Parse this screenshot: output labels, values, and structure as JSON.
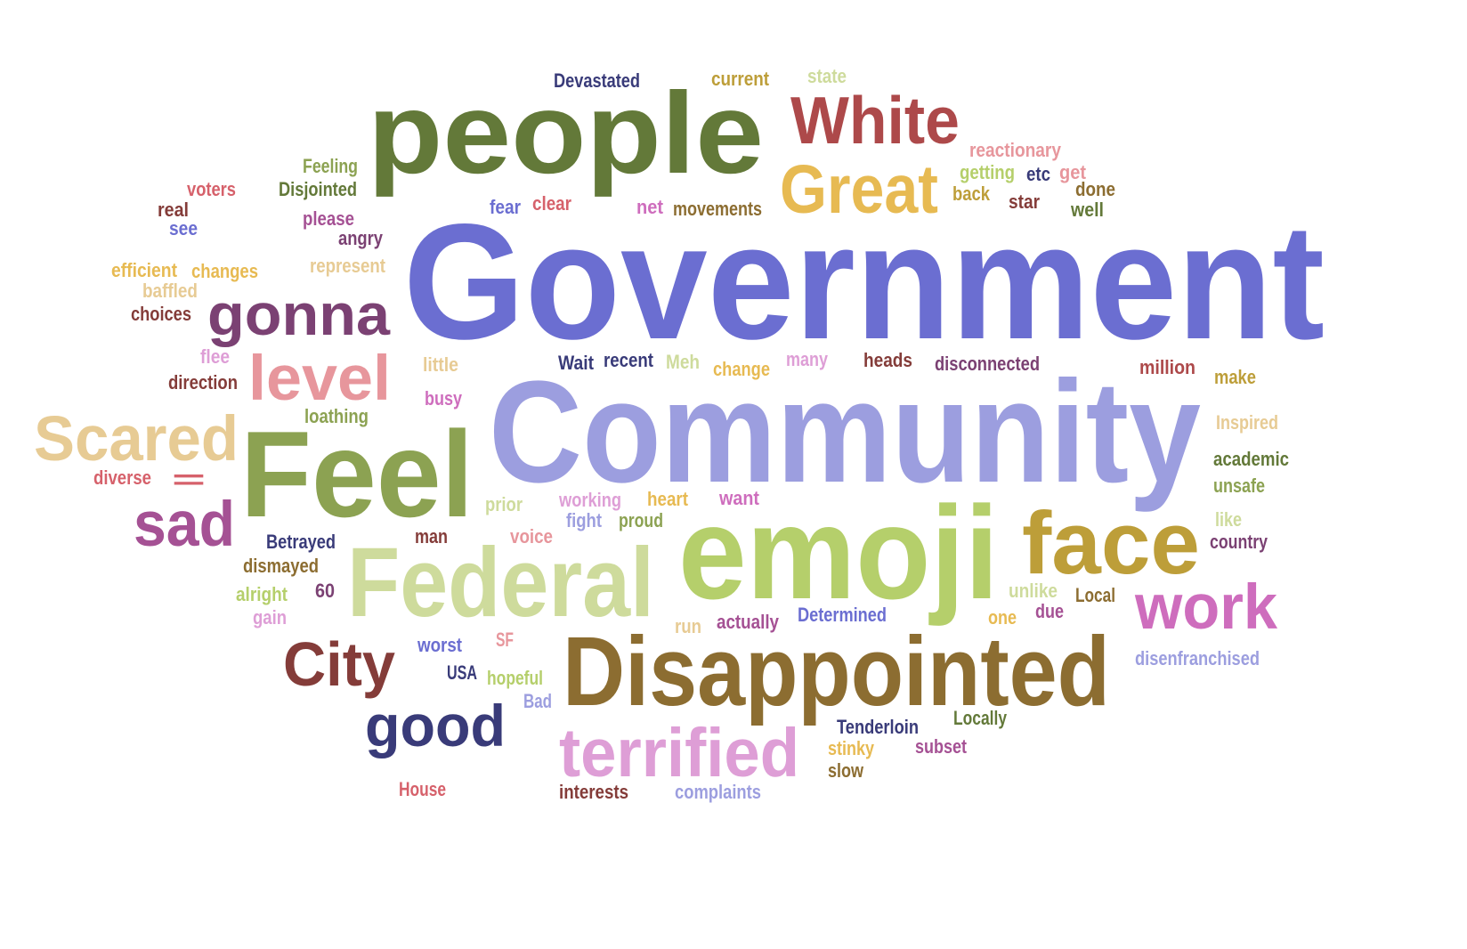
{
  "words": [
    {
      "text": "Government",
      "color": "#6b6ed1"
    },
    {
      "text": "Community",
      "color": "#9c9edf"
    },
    {
      "text": "people",
      "color": "#637939"
    },
    {
      "text": "emoji",
      "color": "#b5cf6b"
    },
    {
      "text": "Feel",
      "color": "#8ca252"
    },
    {
      "text": "Disappointed",
      "color": "#8c6d31"
    },
    {
      "text": "Federal",
      "color": "#cedb9c"
    },
    {
      "text": "face",
      "color": "#bd9e39"
    },
    {
      "text": "White",
      "color": "#ad494a"
    },
    {
      "text": "Great",
      "color": "#e7ba52"
    },
    {
      "text": "gonna",
      "color": "#7b4173"
    },
    {
      "text": "terrified",
      "color": "#de9ed6"
    },
    {
      "text": "good",
      "color": "#393b79"
    },
    {
      "text": "work",
      "color": "#ce6dbd"
    },
    {
      "text": "level",
      "color": "#e7969c"
    },
    {
      "text": "Scared",
      "color": "#e7cb94"
    },
    {
      "text": "City",
      "color": "#843c39"
    },
    {
      "text": "sad",
      "color": "#a55194"
    },
    {
      "text": "=",
      "color": "#d6616b"
    },
    {
      "text": "Devastated",
      "color": "#393b79"
    },
    {
      "text": "current",
      "color": "#bd9e39"
    },
    {
      "text": "state",
      "color": "#cedb9c"
    },
    {
      "text": "reactionary",
      "color": "#e7969c"
    },
    {
      "text": "Feeling",
      "color": "#8ca252"
    },
    {
      "text": "Disjointed",
      "color": "#637939"
    },
    {
      "text": "getting",
      "color": "#b5cf6b"
    },
    {
      "text": "etc",
      "color": "#393b79"
    },
    {
      "text": "get",
      "color": "#e7969c"
    },
    {
      "text": "voters",
      "color": "#d6616b"
    },
    {
      "text": "back",
      "color": "#bd9e39"
    },
    {
      "text": "done",
      "color": "#8c6d31"
    },
    {
      "text": "real",
      "color": "#843c39"
    },
    {
      "text": "please",
      "color": "#a55194"
    },
    {
      "text": "fear",
      "color": "#6b6ed1"
    },
    {
      "text": "clear",
      "color": "#d6616b"
    },
    {
      "text": "net",
      "color": "#ce6dbd"
    },
    {
      "text": "movements",
      "color": "#8c6d31"
    },
    {
      "text": "star",
      "color": "#843c39"
    },
    {
      "text": "well",
      "color": "#637939"
    },
    {
      "text": "see",
      "color": "#6b6ed1"
    },
    {
      "text": "angry",
      "color": "#7b4173"
    },
    {
      "text": "efficient",
      "color": "#e7ba52"
    },
    {
      "text": "changes",
      "color": "#e7ba52"
    },
    {
      "text": "represent",
      "color": "#e7cb94"
    },
    {
      "text": "baffled",
      "color": "#e7cb94"
    },
    {
      "text": "choices",
      "color": "#843c39"
    },
    {
      "text": "flee",
      "color": "#de9ed6"
    },
    {
      "text": "little",
      "color": "#e7cb94"
    },
    {
      "text": "Wait",
      "color": "#393b79"
    },
    {
      "text": "recent",
      "color": "#393b79"
    },
    {
      "text": "Meh",
      "color": "#cedb9c"
    },
    {
      "text": "change",
      "color": "#e7ba52"
    },
    {
      "text": "many",
      "color": "#de9ed6"
    },
    {
      "text": "heads",
      "color": "#843c39"
    },
    {
      "text": "disconnected",
      "color": "#7b4173"
    },
    {
      "text": "million",
      "color": "#ad494a"
    },
    {
      "text": "make",
      "color": "#bd9e39"
    },
    {
      "text": "direction",
      "color": "#843c39"
    },
    {
      "text": "busy",
      "color": "#ce6dbd"
    },
    {
      "text": "loathing",
      "color": "#8ca252"
    },
    {
      "text": "Inspired",
      "color": "#e7cb94"
    },
    {
      "text": "academic",
      "color": "#637939"
    },
    {
      "text": "diverse",
      "color": "#d6616b"
    },
    {
      "text": "unsafe",
      "color": "#8ca252"
    },
    {
      "text": "prior",
      "color": "#cedb9c"
    },
    {
      "text": "working",
      "color": "#de9ed6"
    },
    {
      "text": "heart",
      "color": "#e7ba52"
    },
    {
      "text": "want",
      "color": "#ce6dbd"
    },
    {
      "text": "like",
      "color": "#cedb9c"
    },
    {
      "text": "fight",
      "color": "#9c9edf"
    },
    {
      "text": "proud",
      "color": "#8ca252"
    },
    {
      "text": "country",
      "color": "#7b4173"
    },
    {
      "text": "Betrayed",
      "color": "#393b79"
    },
    {
      "text": "man",
      "color": "#843c39"
    },
    {
      "text": "voice",
      "color": "#e7969c"
    },
    {
      "text": "dismayed",
      "color": "#8c6d31"
    },
    {
      "text": "alright",
      "color": "#b5cf6b"
    },
    {
      "text": "60",
      "color": "#7b4173"
    },
    {
      "text": "unlike",
      "color": "#cedb9c"
    },
    {
      "text": "Local",
      "color": "#8c6d31"
    },
    {
      "text": "gain",
      "color": "#de9ed6"
    },
    {
      "text": "run",
      "color": "#e7cb94"
    },
    {
      "text": "actually",
      "color": "#a55194"
    },
    {
      "text": "Determined",
      "color": "#6b6ed1"
    },
    {
      "text": "one",
      "color": "#e7ba52"
    },
    {
      "text": "due",
      "color": "#a55194"
    },
    {
      "text": "worst",
      "color": "#6b6ed1"
    },
    {
      "text": "SF",
      "color": "#e7969c"
    },
    {
      "text": "disenfranchised",
      "color": "#9c9edf"
    },
    {
      "text": "USA",
      "color": "#393b79"
    },
    {
      "text": "hopeful",
      "color": "#b5cf6b"
    },
    {
      "text": "Bad",
      "color": "#9c9edf"
    },
    {
      "text": "Locally",
      "color": "#637939"
    },
    {
      "text": "Tenderloin",
      "color": "#393b79"
    },
    {
      "text": "stinky",
      "color": "#e7ba52"
    },
    {
      "text": "subset",
      "color": "#a55194"
    },
    {
      "text": "slow",
      "color": "#8c6d31"
    },
    {
      "text": "House",
      "color": "#d6616b"
    },
    {
      "text": "interests",
      "color": "#843c39"
    },
    {
      "text": "complaints",
      "color": "#9c9edf"
    }
  ]
}
